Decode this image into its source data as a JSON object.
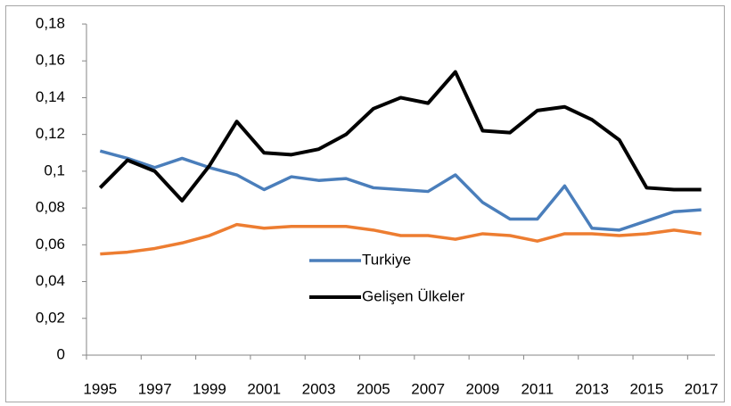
{
  "chart_data": {
    "type": "line",
    "x": [
      1995,
      1996,
      1997,
      1998,
      1999,
      2000,
      2001,
      2002,
      2003,
      2004,
      2005,
      2006,
      2007,
      2008,
      2009,
      2010,
      2011,
      2012,
      2013,
      2014,
      2015,
      2016,
      2017
    ],
    "xlim": [
      1994.5,
      2017.5
    ],
    "xticks": [
      1995,
      1997,
      1999,
      2001,
      2003,
      2005,
      2007,
      2009,
      2011,
      2013,
      2015,
      2017
    ],
    "ylim": [
      0,
      0.18
    ],
    "yticks": [
      0,
      {
        "value": 0.02,
        "label": "0,02"
      },
      {
        "value": 0.04,
        "label": "0,04"
      },
      {
        "value": 0.06,
        "label": "0,06"
      },
      {
        "value": 0.08,
        "label": "0,08"
      },
      {
        "value": 0.1,
        "label": "0,1"
      },
      {
        "value": 0.12,
        "label": "0,12"
      },
      {
        "value": 0.14,
        "label": "0,14"
      },
      {
        "value": 0.16,
        "label": "0,16"
      },
      {
        "value": 0.18,
        "label": "0,18"
      }
    ],
    "grid": false,
    "series": [
      {
        "color": "#ed7d31",
        "values": [
          0.055,
          0.056,
          0.058,
          0.061,
          0.065,
          0.071,
          0.069,
          0.07,
          0.07,
          0.07,
          0.068,
          0.065,
          0.065,
          0.063,
          0.066,
          0.065,
          0.062,
          0.066,
          0.066,
          0.065,
          0.066,
          0.068,
          0.066
        ]
      },
      {
        "name": "Turkiye",
        "color": "#4a7ebb",
        "values": [
          0.111,
          0.107,
          0.102,
          0.107,
          0.102,
          0.098,
          0.09,
          0.097,
          0.095,
          0.096,
          0.091,
          0.09,
          0.089,
          0.098,
          0.083,
          0.074,
          0.074,
          0.092,
          0.069,
          0.068,
          0.073,
          0.078,
          0.079
        ]
      },
      {
        "name": "Gelişen Ülkeler",
        "color": "#000000",
        "values": [
          0.091,
          0.106,
          0.1,
          0.084,
          0.103,
          0.127,
          0.11,
          0.109,
          0.112,
          0.12,
          0.134,
          0.14,
          0.137,
          0.154,
          0.122,
          0.121,
          0.133,
          0.135,
          0.128,
          0.117,
          0.091,
          0.09,
          0.09
        ]
      }
    ]
  }
}
